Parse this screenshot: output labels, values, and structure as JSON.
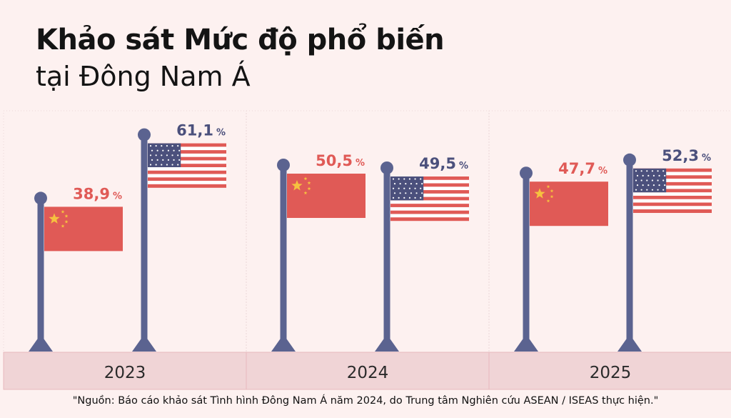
{
  "title": {
    "line1": "Khảo sát Mức độ phổ biến",
    "line2": "tại Đông Nam Á"
  },
  "source": "\"Nguồn: Báo cáo khảo sát Tình hình Đông Nam Á năm 2024, do Trung tâm Nghiên cứu ASEAN / ISEAS thực hiện.\"",
  "colors": {
    "background": "#fdf1f0",
    "china": "#e05a56",
    "usa": "#4b507c",
    "pole": "#5b6390",
    "year_band": "#f0d4d6"
  },
  "icons": {
    "china": "china-flag-icon",
    "usa": "usa-flag-icon"
  },
  "chart_data": {
    "type": "bar",
    "categories": [
      "2023",
      "2024",
      "2025"
    ],
    "unit": "%",
    "ylim": [
      0,
      100
    ],
    "series": [
      {
        "key": "china",
        "values": [
          38.9,
          50.5,
          47.7
        ],
        "labels": [
          "38,9",
          "50,5",
          "47,7"
        ]
      },
      {
        "key": "usa",
        "values": [
          61.1,
          49.5,
          52.3
        ],
        "labels": [
          "61,1",
          "49,5",
          "52,3"
        ]
      }
    ]
  }
}
